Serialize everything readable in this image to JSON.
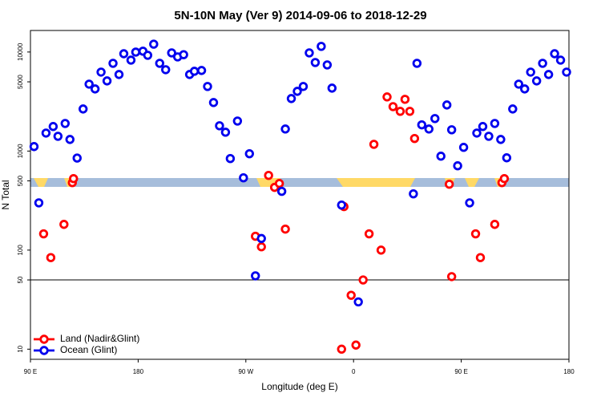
{
  "chart_data": {
    "type": "scatter",
    "title": "5N-10N May (Ver 9)   2014-09-06 to 2018-12-29",
    "xlabel": "Longitude (deg E)",
    "ylabel": "N Total",
    "log_y": true,
    "legend": "bottom-left",
    "hline": 50,
    "xlim": [
      90,
      540
    ],
    "xticks": [
      {
        "value": 90,
        "label": "90 E"
      },
      180,
      {
        "value": 270,
        "label": "90 W"
      },
      {
        "value": 360,
        "label": "0"
      },
      {
        "value": 450,
        "label": "90 E"
      },
      {
        "value": 540,
        "label": "180"
      }
    ],
    "ylim": [
      7.9,
      16500
    ],
    "yticks": [
      10,
      50,
      100,
      500,
      1000,
      5000,
      10000
    ],
    "series": [
      {
        "name": "Land (Nadir&Glint)",
        "color": "#ff0000",
        "x": [
          101,
          107,
          118,
          125,
          126,
          278,
          283,
          289,
          294,
          298,
          303,
          350,
          352,
          358,
          362,
          368,
          373,
          377,
          383,
          388,
          393,
          399,
          403,
          407,
          411,
          440,
          442,
          462,
          466,
          478,
          484,
          486
        ],
        "values": [
          146,
          84,
          182,
          480,
          527,
          138,
          108,
          568,
          430,
          471,
          163,
          10,
          275,
          35,
          11,
          50,
          146,
          1170,
          100,
          3520,
          2810,
          2520,
          3330,
          2520,
          1340,
          463,
          54,
          146,
          84,
          182,
          480,
          527
        ]
      },
      {
        "name": "Ocean (Glint)",
        "color": "#0000ee",
        "x": [
          93,
          97,
          103,
          109,
          113,
          119,
          123,
          129,
          134,
          139,
          144,
          149,
          154,
          159,
          164,
          168,
          174,
          178,
          184,
          188,
          193,
          198,
          203,
          208,
          213,
          218,
          223,
          227,
          233,
          238,
          243,
          248,
          253,
          257,
          263,
          268,
          273,
          278,
          283,
          300,
          303,
          308,
          313,
          318,
          323,
          328,
          333,
          338,
          342,
          350,
          364,
          410,
          413,
          417,
          423,
          428,
          433,
          438,
          442,
          447,
          452,
          457,
          463,
          468,
          473,
          478,
          483,
          488,
          493,
          498,
          503,
          508,
          513,
          518,
          523,
          528,
          533,
          538
        ],
        "values": [
          1110,
          300,
          1520,
          1770,
          1410,
          1900,
          1310,
          850,
          2660,
          4740,
          4240,
          6270,
          5110,
          7690,
          5930,
          9610,
          8280,
          9980,
          10200,
          9270,
          12000,
          7690,
          6630,
          9800,
          8930,
          9400,
          5930,
          6390,
          6510,
          4490,
          3090,
          1800,
          1550,
          840,
          2010,
          537,
          940,
          55,
          131,
          392,
          1670,
          3390,
          4010,
          4490,
          9800,
          7840,
          11400,
          7410,
          4320,
          285,
          30,
          370,
          7690,
          1840,
          1670,
          2130,
          888,
          2920,
          1640,
          710,
          1090,
          300,
          1520,
          1770,
          1410,
          1900,
          1310,
          855,
          2660,
          4740,
          4240,
          6270,
          5110,
          7690,
          5930,
          9610,
          8280,
          6270
        ]
      }
    ]
  }
}
